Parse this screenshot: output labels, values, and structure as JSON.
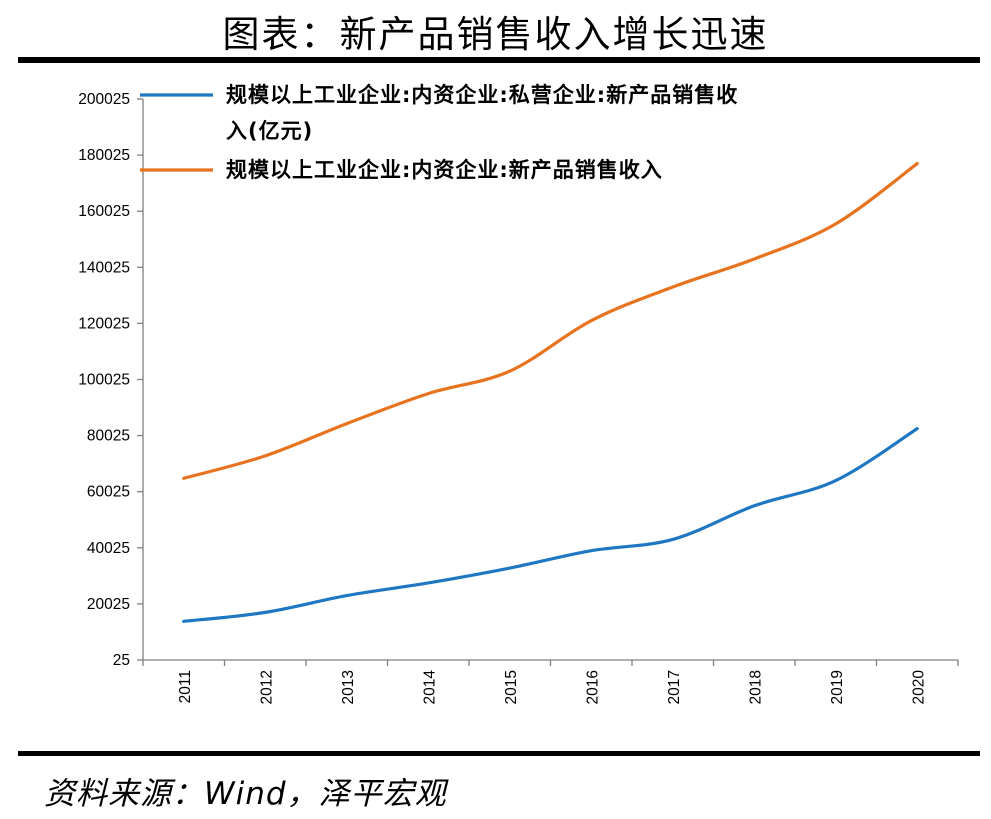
{
  "figure": {
    "title": "图表：新产品销售收入增长迅速",
    "source": "资料来源：Wind，泽平宏观"
  },
  "chart_data": {
    "type": "line",
    "x": [
      "2011",
      "2012",
      "2013",
      "2014",
      "2015",
      "2016",
      "2017",
      "2018",
      "2019",
      "2020"
    ],
    "ylim": [
      25,
      200025
    ],
    "yticks": [
      "200025",
      "180025",
      "160025",
      "140025",
      "120025",
      "100025",
      "80025",
      "60025",
      "40025",
      "20025",
      "25"
    ],
    "grid": false,
    "legend_position": "top-left",
    "series": [
      {
        "name": "规模以上工业企业:内资企业:私营企业:新产品销售收入(亿元)",
        "name_lines": [
          "规模以上工业企业:内资企业:私营企业:新产品销售收",
          "入(亿元)"
        ],
        "color": "#1f77c4",
        "values": [
          13800,
          17000,
          23000,
          27500,
          32800,
          39000,
          43000,
          55000,
          64000,
          82500
        ]
      },
      {
        "name": "规模以上工业企业:内资企业:新产品销售收入",
        "name_lines": [
          "规模以上工业企业:内资企业:新产品销售收入"
        ],
        "color": "#e8731f",
        "values": [
          64800,
          72800,
          84300,
          95000,
          103000,
          121000,
          133000,
          143000,
          155500,
          177000
        ]
      }
    ]
  }
}
